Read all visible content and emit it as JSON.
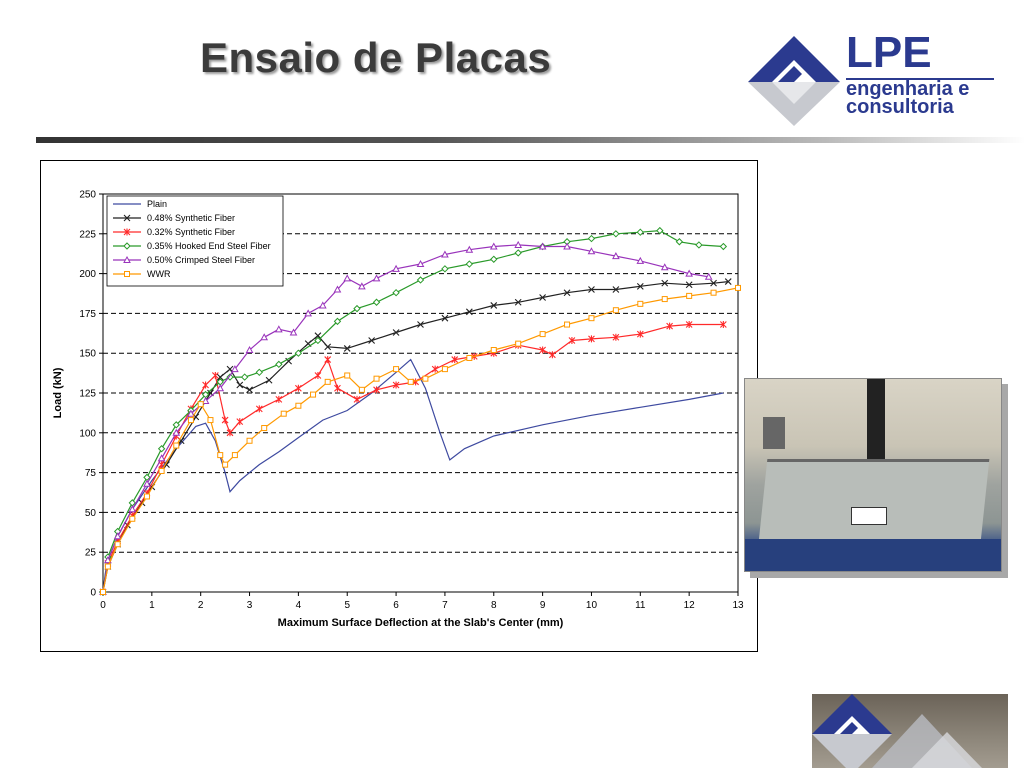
{
  "slide": {
    "title": "Ensaio de Placas"
  },
  "logo": {
    "brand": "LPE",
    "line1": "engenharia e",
    "line2": "consultoria",
    "color": "#2b3a8f"
  },
  "chart_data": {
    "type": "line",
    "title": "",
    "xlabel": "Maximum Surface Deflection at the Slab's Center (mm)",
    "ylabel": "Load (kN)",
    "xlim": [
      0,
      13
    ],
    "ylim": [
      0,
      250
    ],
    "xticks": [
      0,
      1,
      2,
      3,
      4,
      5,
      6,
      7,
      8,
      9,
      10,
      11,
      12,
      13
    ],
    "yticks": [
      0,
      25,
      50,
      75,
      100,
      125,
      150,
      175,
      200,
      225,
      250
    ],
    "grid": "horizontal dashed",
    "legend_position": "top-left",
    "series": [
      {
        "name": "Plain",
        "color": "#3e4aa0",
        "marker": "none",
        "points": [
          [
            0,
            0
          ],
          [
            0.05,
            12
          ],
          [
            0.1,
            20
          ],
          [
            0.3,
            35
          ],
          [
            0.6,
            52
          ],
          [
            1.0,
            70
          ],
          [
            1.5,
            90
          ],
          [
            1.9,
            104
          ],
          [
            2.1,
            106
          ],
          [
            2.3,
            95
          ],
          [
            2.5,
            75
          ],
          [
            2.6,
            63
          ],
          [
            2.8,
            70
          ],
          [
            3.2,
            80
          ],
          [
            3.6,
            88
          ],
          [
            4.0,
            97
          ],
          [
            4.5,
            108
          ],
          [
            5.0,
            114
          ],
          [
            5.5,
            125
          ],
          [
            6.0,
            138
          ],
          [
            6.3,
            146
          ],
          [
            6.6,
            128
          ],
          [
            6.9,
            100
          ],
          [
            7.1,
            83
          ],
          [
            7.4,
            90
          ],
          [
            8.0,
            98
          ],
          [
            9.0,
            105
          ],
          [
            10.0,
            111
          ],
          [
            11.0,
            116
          ],
          [
            12.0,
            121
          ],
          [
            12.7,
            125
          ]
        ]
      },
      {
        "name": "0.48% Synthetic Fiber",
        "color": "#222222",
        "marker": "x",
        "points": [
          [
            0,
            0
          ],
          [
            0.1,
            16
          ],
          [
            0.3,
            30
          ],
          [
            0.5,
            42
          ],
          [
            0.8,
            56
          ],
          [
            1.0,
            66
          ],
          [
            1.3,
            80
          ],
          [
            1.6,
            95
          ],
          [
            1.9,
            110
          ],
          [
            2.2,
            125
          ],
          [
            2.4,
            135
          ],
          [
            2.6,
            140
          ],
          [
            2.8,
            130
          ],
          [
            3.0,
            127
          ],
          [
            3.4,
            133
          ],
          [
            3.8,
            145
          ],
          [
            4.2,
            156
          ],
          [
            4.4,
            161
          ],
          [
            4.6,
            154
          ],
          [
            5.0,
            153
          ],
          [
            5.5,
            158
          ],
          [
            6.0,
            163
          ],
          [
            6.5,
            168
          ],
          [
            7.0,
            172
          ],
          [
            7.5,
            176
          ],
          [
            8.0,
            180
          ],
          [
            8.5,
            182
          ],
          [
            9.0,
            185
          ],
          [
            9.5,
            188
          ],
          [
            10.0,
            190
          ],
          [
            10.5,
            190
          ],
          [
            11.0,
            192
          ],
          [
            11.5,
            194
          ],
          [
            12.0,
            193
          ],
          [
            12.5,
            194
          ],
          [
            12.8,
            195
          ]
        ]
      },
      {
        "name": "0.32% Synthetic Fiber",
        "color": "#ff2a2a",
        "marker": "asterisk",
        "points": [
          [
            0,
            0
          ],
          [
            0.1,
            18
          ],
          [
            0.3,
            32
          ],
          [
            0.6,
            48
          ],
          [
            0.9,
            62
          ],
          [
            1.2,
            80
          ],
          [
            1.5,
            98
          ],
          [
            1.8,
            115
          ],
          [
            2.1,
            130
          ],
          [
            2.3,
            136
          ],
          [
            2.5,
            108
          ],
          [
            2.6,
            100
          ],
          [
            2.8,
            107
          ],
          [
            3.2,
            115
          ],
          [
            3.6,
            121
          ],
          [
            4.0,
            128
          ],
          [
            4.4,
            136
          ],
          [
            4.6,
            146
          ],
          [
            4.8,
            128
          ],
          [
            5.2,
            121
          ],
          [
            5.6,
            127
          ],
          [
            6.0,
            130
          ],
          [
            6.4,
            132
          ],
          [
            6.8,
            140
          ],
          [
            7.2,
            146
          ],
          [
            7.6,
            148
          ],
          [
            8.0,
            150
          ],
          [
            8.5,
            155
          ],
          [
            9.0,
            152
          ],
          [
            9.2,
            149
          ],
          [
            9.6,
            158
          ],
          [
            10.0,
            159
          ],
          [
            10.5,
            160
          ],
          [
            11.0,
            162
          ],
          [
            11.6,
            167
          ],
          [
            12.0,
            168
          ],
          [
            12.7,
            168
          ]
        ]
      },
      {
        "name": "0.35% Hooked End Steel Fiber",
        "color": "#2a9a2a",
        "marker": "diamond",
        "points": [
          [
            0,
            0
          ],
          [
            0.1,
            22
          ],
          [
            0.3,
            38
          ],
          [
            0.6,
            56
          ],
          [
            0.9,
            72
          ],
          [
            1.2,
            90
          ],
          [
            1.5,
            105
          ],
          [
            1.8,
            114
          ],
          [
            2.1,
            124
          ],
          [
            2.4,
            132
          ],
          [
            2.6,
            135
          ],
          [
            2.9,
            135
          ],
          [
            3.2,
            138
          ],
          [
            3.6,
            143
          ],
          [
            4.0,
            150
          ],
          [
            4.4,
            158
          ],
          [
            4.8,
            170
          ],
          [
            5.2,
            178
          ],
          [
            5.6,
            182
          ],
          [
            6.0,
            188
          ],
          [
            6.5,
            196
          ],
          [
            7.0,
            203
          ],
          [
            7.5,
            206
          ],
          [
            8.0,
            209
          ],
          [
            8.5,
            213
          ],
          [
            9.0,
            217
          ],
          [
            9.5,
            220
          ],
          [
            10.0,
            222
          ],
          [
            10.5,
            225
          ],
          [
            11.0,
            226
          ],
          [
            11.4,
            227
          ],
          [
            11.8,
            220
          ],
          [
            12.2,
            218
          ],
          [
            12.7,
            217
          ]
        ]
      },
      {
        "name": "0.50% Crimped Steel Fiber",
        "color": "#9933bb",
        "marker": "triangle",
        "points": [
          [
            0,
            0
          ],
          [
            0.1,
            20
          ],
          [
            0.3,
            35
          ],
          [
            0.6,
            52
          ],
          [
            0.9,
            68
          ],
          [
            1.2,
            84
          ],
          [
            1.5,
            100
          ],
          [
            1.8,
            112
          ],
          [
            2.1,
            120
          ],
          [
            2.4,
            128
          ],
          [
            2.7,
            140
          ],
          [
            3.0,
            152
          ],
          [
            3.3,
            160
          ],
          [
            3.6,
            165
          ],
          [
            3.9,
            163
          ],
          [
            4.2,
            175
          ],
          [
            4.5,
            180
          ],
          [
            4.8,
            190
          ],
          [
            5.0,
            197
          ],
          [
            5.3,
            192
          ],
          [
            5.6,
            197
          ],
          [
            6.0,
            203
          ],
          [
            6.5,
            206
          ],
          [
            7.0,
            212
          ],
          [
            7.5,
            215
          ],
          [
            8.0,
            217
          ],
          [
            8.5,
            218
          ],
          [
            9.0,
            217
          ],
          [
            9.5,
            217
          ],
          [
            10.0,
            214
          ],
          [
            10.5,
            211
          ],
          [
            11.0,
            208
          ],
          [
            11.5,
            204
          ],
          [
            12.0,
            200
          ],
          [
            12.4,
            198
          ]
        ]
      },
      {
        "name": "WWR",
        "color": "#ff9900",
        "marker": "square",
        "points": [
          [
            0,
            0
          ],
          [
            0.1,
            16
          ],
          [
            0.3,
            30
          ],
          [
            0.6,
            46
          ],
          [
            0.9,
            60
          ],
          [
            1.2,
            76
          ],
          [
            1.5,
            92
          ],
          [
            1.8,
            108
          ],
          [
            2.0,
            118
          ],
          [
            2.2,
            108
          ],
          [
            2.4,
            86
          ],
          [
            2.5,
            80
          ],
          [
            2.7,
            86
          ],
          [
            3.0,
            95
          ],
          [
            3.3,
            103
          ],
          [
            3.7,
            112
          ],
          [
            4.0,
            117
          ],
          [
            4.3,
            124
          ],
          [
            4.6,
            132
          ],
          [
            5.0,
            136
          ],
          [
            5.3,
            127
          ],
          [
            5.6,
            134
          ],
          [
            6.0,
            140
          ],
          [
            6.3,
            132
          ],
          [
            6.6,
            134
          ],
          [
            7.0,
            140
          ],
          [
            7.5,
            147
          ],
          [
            8.0,
            152
          ],
          [
            8.5,
            156
          ],
          [
            9.0,
            162
          ],
          [
            9.5,
            168
          ],
          [
            10.0,
            172
          ],
          [
            10.5,
            177
          ],
          [
            11.0,
            181
          ],
          [
            11.5,
            184
          ],
          [
            12.0,
            186
          ],
          [
            12.5,
            188
          ],
          [
            13.0,
            191
          ]
        ]
      }
    ]
  }
}
